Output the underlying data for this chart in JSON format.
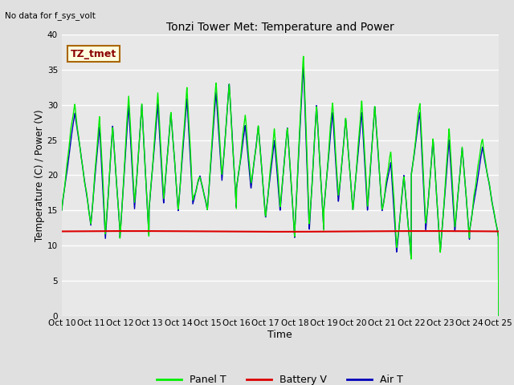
{
  "title": "Tonzi Tower Met: Temperature and Power",
  "xlabel": "Time",
  "ylabel": "Temperature (C) / Power (V)",
  "top_left_text": "No data for f_sys_volt",
  "legend_label_text": "TZ_tmet",
  "ylim": [
    0,
    40
  ],
  "yticks": [
    0,
    5,
    10,
    15,
    20,
    25,
    30,
    35,
    40
  ],
  "xtick_labels": [
    "Oct 10",
    "Oct 11",
    "Oct 12",
    "Oct 13",
    "Oct 14",
    "Oct 15",
    "Oct 16",
    "Oct 17",
    "Oct 18",
    "Oct 19",
    "Oct 20",
    "Oct 21",
    "Oct 22",
    "Oct 23",
    "Oct 24",
    "Oct 25"
  ],
  "bg_color": "#e8e8e8",
  "grid_color": "#ffffff",
  "panel_t_color": "#00ee00",
  "battery_v_color": "#dd0000",
  "air_t_color": "#0000bb",
  "legend_entries": [
    "Panel T",
    "Battery V",
    "Air T"
  ],
  "legend_colors": [
    "#00ee00",
    "#dd0000",
    "#0000bb"
  ],
  "fig_bg_color": "#e0e0e0"
}
